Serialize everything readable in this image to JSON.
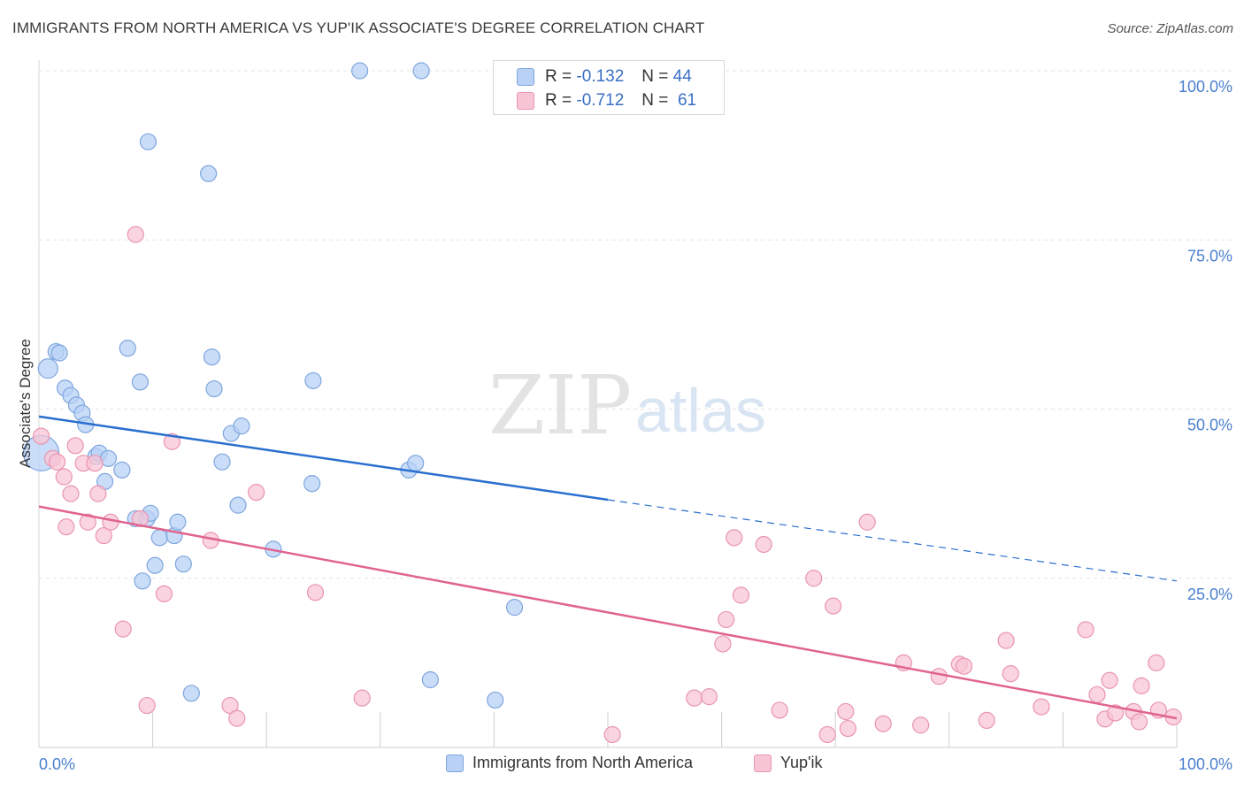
{
  "header": {
    "title": "IMMIGRANTS FROM NORTH AMERICA VS YUP'IK ASSOCIATE'S DEGREE CORRELATION CHART",
    "source": "Source: ZipAtlas.com"
  },
  "watermark": {
    "zip": "ZIP",
    "atlas": "atlas"
  },
  "stats": [
    {
      "r_label": "R =",
      "r_value": "-0.132",
      "n_label": "N =",
      "n_value": "44"
    },
    {
      "r_label": "R =",
      "r_value": "-0.712",
      "n_label": "N =",
      "n_value": "61"
    }
  ],
  "chart_data": {
    "type": "scatter",
    "ylabel": "Associate's Degree",
    "xlim": [
      0,
      100
    ],
    "ylim": [
      0,
      100
    ],
    "x_tick_labels": [
      "0.0%",
      "100.0%"
    ],
    "y_ticks": [
      25,
      50,
      75,
      100
    ],
    "y_tick_labels": [
      "25.0%",
      "50.0%",
      "75.0%",
      "100.0%"
    ],
    "grid": true,
    "legend_placement": "bottom",
    "colors": {
      "blue_fill": "#b8d1f5",
      "blue_stroke": "#7ea6de",
      "blue_line": "#2a6fcf",
      "pink_fill": "#f8c5d5",
      "pink_stroke": "#e994b1",
      "pink_line": "#e0648f",
      "axis_label": "#4a7fcf"
    },
    "series": [
      {
        "name": "Immigrants from North America",
        "trend": {
          "x0": 0,
          "y0": 48.9,
          "x1": 50,
          "y1": 36.6,
          "dash_x1": 100,
          "dash_y1": 24.6
        },
        "points": [
          [
            0.2,
            43.5
          ],
          [
            0.8,
            56
          ],
          [
            1.5,
            58.5
          ],
          [
            1.8,
            58.3
          ],
          [
            2.3,
            53.1
          ],
          [
            2.8,
            52
          ],
          [
            3.3,
            50.6
          ],
          [
            3.8,
            49.4
          ],
          [
            4.1,
            47.7
          ],
          [
            5,
            43
          ],
          [
            5.3,
            43.5
          ],
          [
            5.8,
            39.3
          ],
          [
            6.1,
            42.7
          ],
          [
            7.3,
            41
          ],
          [
            7.8,
            59
          ],
          [
            8.5,
            33.8
          ],
          [
            8.9,
            54
          ],
          [
            9.1,
            24.6
          ],
          [
            9.5,
            33.8
          ],
          [
            9.6,
            89.5
          ],
          [
            9.8,
            34.6
          ],
          [
            10.2,
            26.9
          ],
          [
            10.6,
            31
          ],
          [
            11.9,
            31.3
          ],
          [
            12.2,
            33.3
          ],
          [
            12.7,
            27.1
          ],
          [
            13.4,
            8
          ],
          [
            15.2,
            57.7
          ],
          [
            15.4,
            53
          ],
          [
            14.9,
            84.8
          ],
          [
            16.1,
            42.2
          ],
          [
            16.9,
            46.4
          ],
          [
            17.5,
            35.8
          ],
          [
            17.8,
            47.5
          ],
          [
            20.6,
            29.3
          ],
          [
            24,
            39
          ],
          [
            24.1,
            54.2
          ],
          [
            28.2,
            100
          ],
          [
            32.5,
            41
          ],
          [
            33.1,
            42
          ],
          [
            33.6,
            100
          ],
          [
            34.4,
            10
          ],
          [
            40.1,
            7
          ],
          [
            41.8,
            20.7
          ]
        ]
      },
      {
        "name": "Yup'ik",
        "trend": {
          "x0": 0,
          "y0": 35.6,
          "x1": 100,
          "y1": 4.3
        },
        "points": [
          [
            0.2,
            46
          ],
          [
            1.2,
            42.7
          ],
          [
            1.6,
            42.2
          ],
          [
            2.2,
            40
          ],
          [
            2.4,
            32.6
          ],
          [
            2.8,
            37.5
          ],
          [
            3.2,
            44.6
          ],
          [
            3.9,
            42
          ],
          [
            4.3,
            33.3
          ],
          [
            4.9,
            42
          ],
          [
            5.2,
            37.5
          ],
          [
            5.7,
            31.3
          ],
          [
            6.3,
            33.3
          ],
          [
            7.4,
            17.5
          ],
          [
            8.5,
            75.8
          ],
          [
            8.9,
            33.8
          ],
          [
            9.5,
            6.2
          ],
          [
            11,
            22.7
          ],
          [
            11.7,
            45.2
          ],
          [
            15.1,
            30.6
          ],
          [
            16.8,
            6.2
          ],
          [
            17.4,
            4.3
          ],
          [
            19.1,
            37.7
          ],
          [
            24.3,
            22.9
          ],
          [
            28.4,
            7.3
          ],
          [
            50.4,
            1.9
          ],
          [
            57.6,
            7.3
          ],
          [
            58.9,
            7.5
          ],
          [
            60.1,
            15.3
          ],
          [
            60.4,
            18.9
          ],
          [
            61.1,
            31
          ],
          [
            61.7,
            22.5
          ],
          [
            63.7,
            30
          ],
          [
            65.1,
            5.5
          ],
          [
            68.1,
            25
          ],
          [
            69.3,
            1.9
          ],
          [
            69.8,
            20.9
          ],
          [
            70.9,
            5.3
          ],
          [
            71.1,
            2.8
          ],
          [
            72.8,
            33.3
          ],
          [
            74.2,
            3.5
          ],
          [
            76,
            12.5
          ],
          [
            77.5,
            3.3
          ],
          [
            79.1,
            10.5
          ],
          [
            80.9,
            12.3
          ],
          [
            81.3,
            12
          ],
          [
            83.3,
            4
          ],
          [
            85,
            15.8
          ],
          [
            85.4,
            10.9
          ],
          [
            88.1,
            6
          ],
          [
            92,
            17.4
          ],
          [
            93,
            7.8
          ],
          [
            93.7,
            4.2
          ],
          [
            94.1,
            9.9
          ],
          [
            94.6,
            5.1
          ],
          [
            96.2,
            5.3
          ],
          [
            96.7,
            3.8
          ],
          [
            96.9,
            9.1
          ],
          [
            98.4,
            5.5
          ],
          [
            98.2,
            12.5
          ],
          [
            99.7,
            4.5
          ]
        ]
      }
    ]
  }
}
